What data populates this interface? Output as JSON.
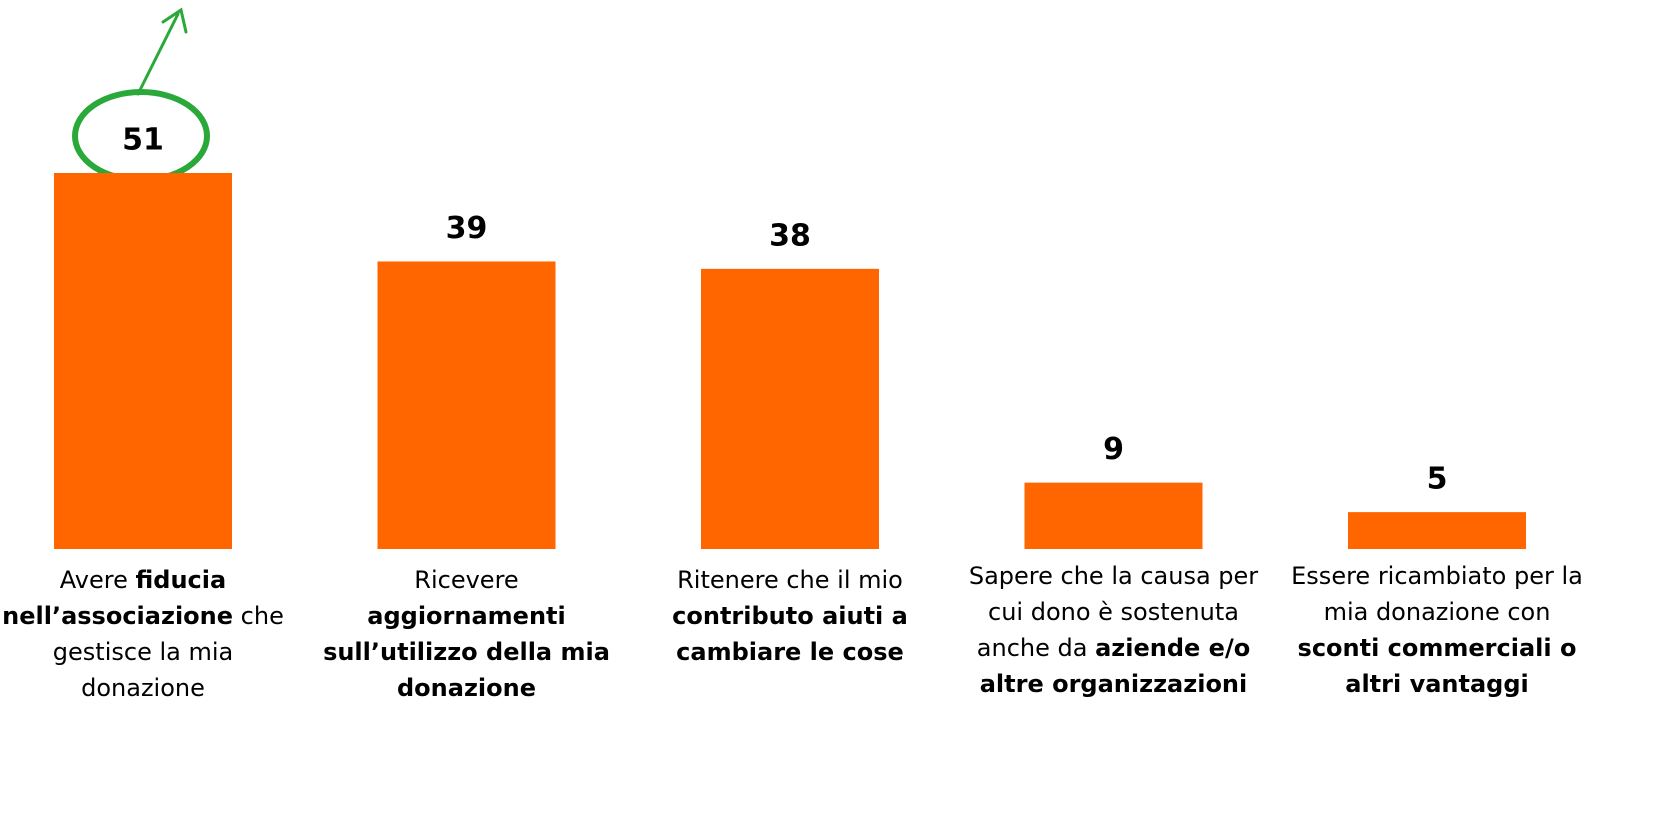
{
  "chart_data": {
    "type": "bar",
    "categories": [
      [
        {
          "text": "Avere ",
          "bold": false
        },
        {
          "text": "fiducia nell’associazione",
          "bold": true
        },
        {
          "text": " che gestisce la mia donazione",
          "bold": false
        }
      ],
      [
        {
          "text": "Ricevere ",
          "bold": false
        },
        {
          "text": "aggiornamenti sull’utilizzo della mia donazione",
          "bold": true
        }
      ],
      [
        {
          "text": "Ritenere che il mio ",
          "bold": false
        },
        {
          "text": "contributo aiuti a cambiare le cose",
          "bold": true
        }
      ],
      [
        {
          "text": "Sapere che la causa per cui dono è sostenuta anche da ",
          "bold": false
        },
        {
          "text": "aziende e/o altre organizzazioni",
          "bold": true
        }
      ],
      [
        {
          "text": "Essere ricambiato per la mia donazione con ",
          "bold": false
        },
        {
          "text": "sconti commerciali o altri vantaggi",
          "bold": true
        }
      ]
    ],
    "values": [
      51,
      39,
      38,
      9,
      5
    ],
    "color": "#ff6600"
  }
}
